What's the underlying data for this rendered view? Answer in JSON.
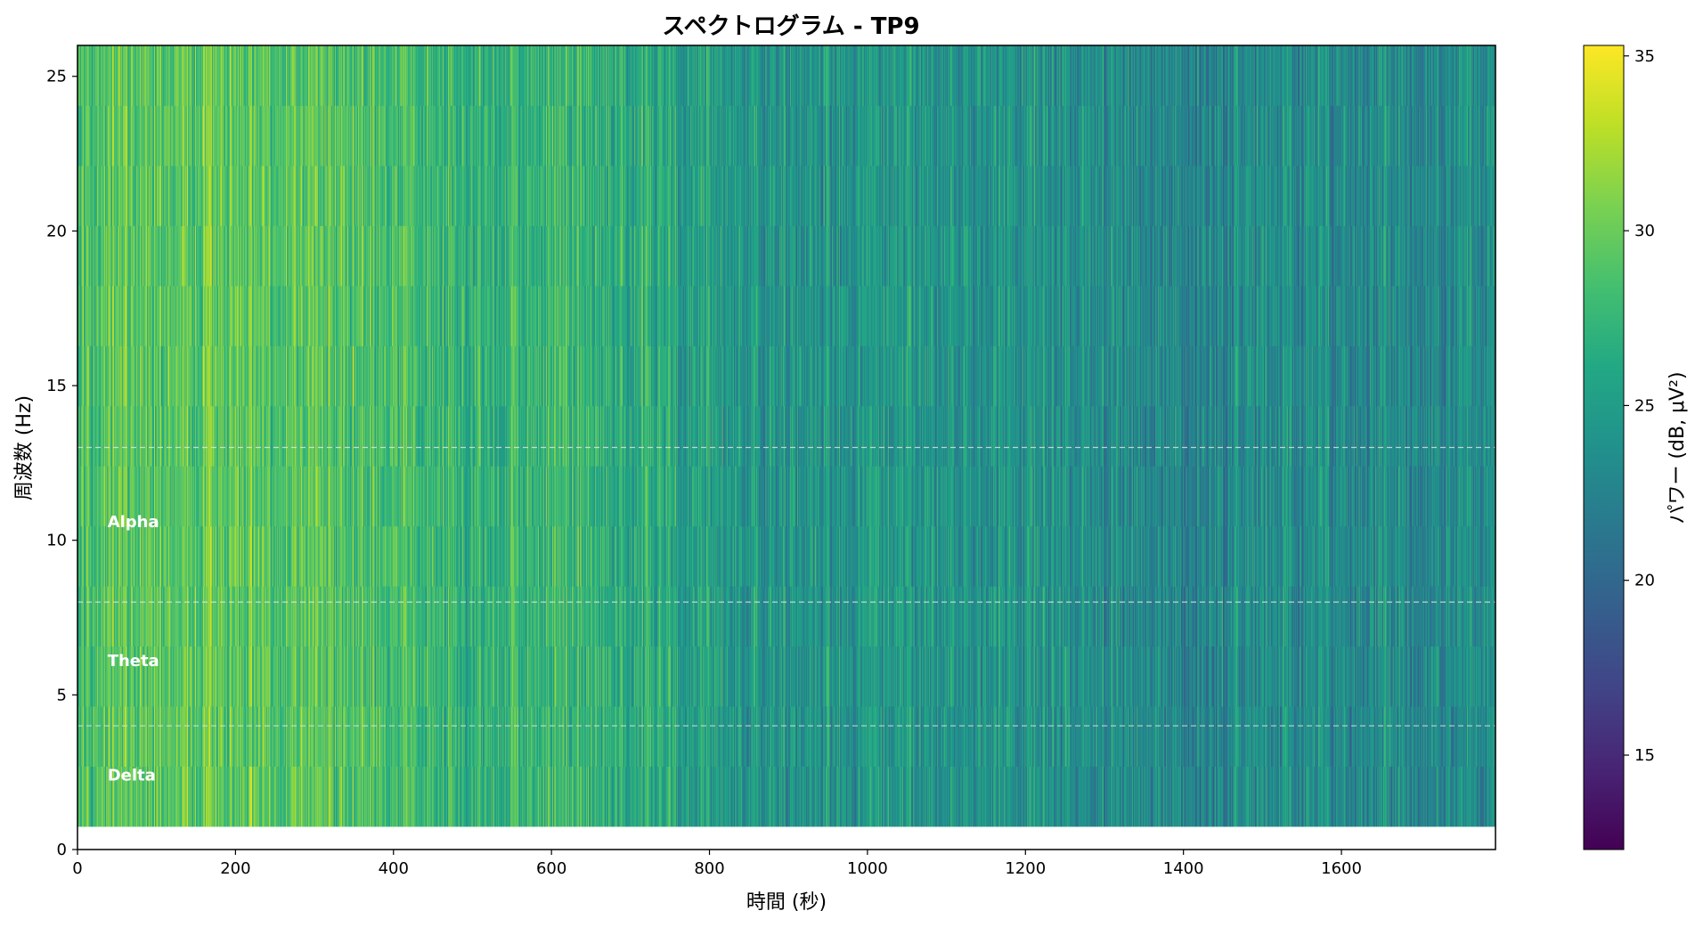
{
  "chart_data": {
    "type": "heatmap",
    "title": "スペクトログラム - TP9",
    "xlabel": "時間 (秒)",
    "ylabel": "周波数 (Hz)",
    "colorbar_label": "パワー (dB, μV²)",
    "colormap": "viridis",
    "xlim": [
      0,
      1795
    ],
    "ylim": [
      0,
      26
    ],
    "x_ticks": [
      0,
      200,
      400,
      600,
      800,
      1000,
      1200,
      1400,
      1600
    ],
    "x_tick_labels": [
      "0",
      "200",
      "400",
      "600",
      "800",
      "1000",
      "1200",
      "1400",
      "1600"
    ],
    "y_ticks": [
      0,
      5,
      10,
      15,
      20,
      25
    ],
    "y_tick_labels": [
      "0",
      "5",
      "10",
      "15",
      "20",
      "25"
    ],
    "colorbar_range": [
      12.3,
      35.3
    ],
    "colorbar_ticks": [
      15,
      20,
      25,
      30,
      35
    ],
    "colorbar_tick_labels": [
      "15",
      "20",
      "25",
      "30",
      "35"
    ],
    "frequency_range": [
      0.75,
      26
    ],
    "band_boundaries_hz": [
      4,
      8,
      13
    ],
    "band_labels": [
      {
        "text": "Delta",
        "x": 38,
        "y": 2.4
      },
      {
        "text": "Theta",
        "x": 38,
        "y": 6.1
      },
      {
        "text": "Alpha",
        "x": 38,
        "y": 10.6
      }
    ],
    "power_trend": {
      "time_s": [
        0,
        100,
        200,
        300,
        400,
        500,
        600,
        700,
        800,
        900,
        1000,
        1100,
        1200,
        1300,
        1400,
        1500,
        1600,
        1795
      ],
      "mean_power_db": [
        28.5,
        29.5,
        29.5,
        29.0,
        28.5,
        27.0,
        27.5,
        26.5,
        25.0,
        24.5,
        24.5,
        24.5,
        24.0,
        23.5,
        23.0,
        23.5,
        23.5,
        23.0
      ]
    },
    "grid": false,
    "legend": "none"
  },
  "colors": {
    "band_line": "#e6e6e6",
    "band_label": "#ffffff",
    "axes": "#000000"
  }
}
